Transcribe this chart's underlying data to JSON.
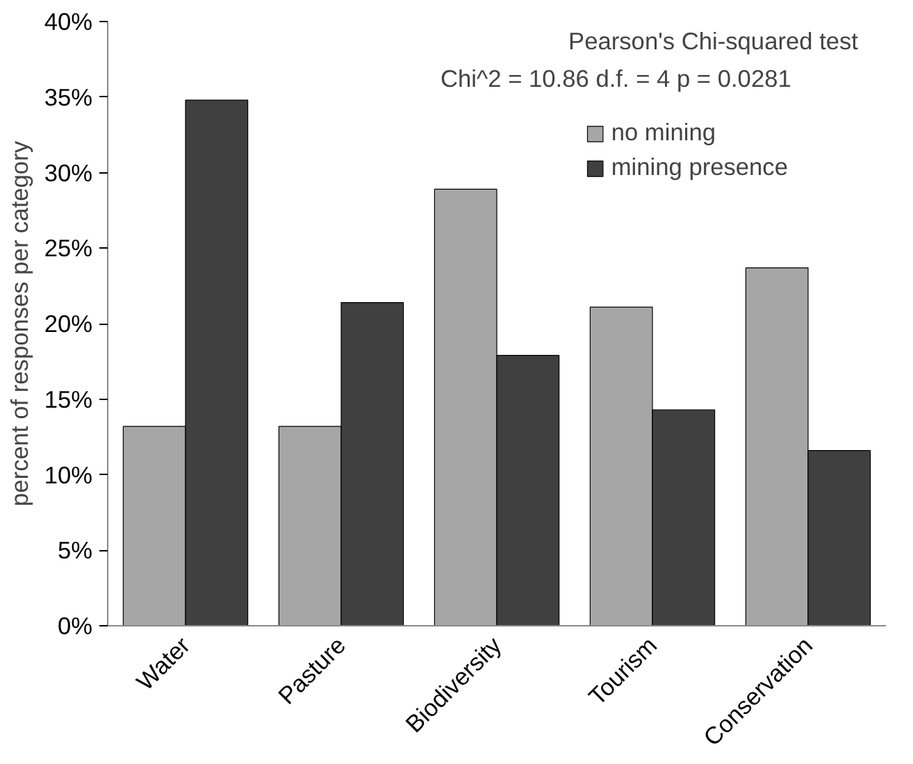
{
  "chart_data": {
    "type": "bar",
    "ylabel": "percent of responses per category",
    "categories": [
      "Water",
      "Pasture",
      "Biodiversity",
      "Tourism",
      "Conservation"
    ],
    "series": [
      {
        "name": "no mining",
        "color": "#a6a6a6",
        "values": [
          13.2,
          13.2,
          28.9,
          21.1,
          23.7
        ]
      },
      {
        "name": "mining presence",
        "color": "#404040",
        "values": [
          34.8,
          21.4,
          17.9,
          14.3,
          11.6
        ]
      }
    ],
    "ylim": [
      0,
      40
    ],
    "yticks": [
      {
        "value": 0,
        "label": "0%"
      },
      {
        "value": 5,
        "label": "5%"
      },
      {
        "value": 10,
        "label": "10%"
      },
      {
        "value": 15,
        "label": "15%"
      },
      {
        "value": 20,
        "label": "20%"
      },
      {
        "value": 25,
        "label": "25%"
      },
      {
        "value": 30,
        "label": "30%"
      },
      {
        "value": 35,
        "label": "35%"
      },
      {
        "value": 40,
        "label": "40%"
      }
    ],
    "annotations": [
      "Pearson's Chi-squared test",
      "Chi^2 =  10.86    d.f. =  4     p =  0.0281"
    ],
    "grid": false,
    "legend": "top right"
  }
}
